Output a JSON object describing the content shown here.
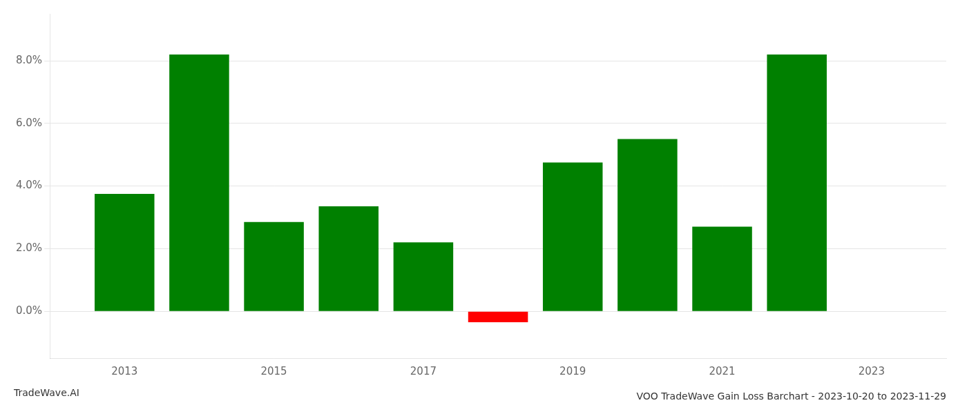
{
  "chart_data": {
    "type": "bar",
    "title": "VOO TradeWave Gain Loss Barchart - 2023-10-20 to 2023-11-29",
    "annotations": [
      "TradeWave.AI"
    ],
    "x": [
      2013,
      2014,
      2015,
      2016,
      2017,
      2018,
      2019,
      2020,
      2021,
      2022
    ],
    "values": [
      0.0375,
      0.082,
      0.0285,
      0.0335,
      0.022,
      -0.0035,
      0.0475,
      0.055,
      0.027,
      0.082
    ],
    "colors": [
      "#008000",
      "#008000",
      "#008000",
      "#008000",
      "#008000",
      "#ff0000",
      "#008000",
      "#008000",
      "#008000",
      "#008000"
    ],
    "xlim": [
      2012.0,
      2024.0
    ],
    "xticks": [
      2013,
      2015,
      2017,
      2019,
      2021,
      2023
    ],
    "ylim": [
      -0.015,
      0.095
    ],
    "yticks": [
      {
        "value": 0.0,
        "label": "0.0%"
      },
      {
        "value": 0.02,
        "label": "2.0%"
      },
      {
        "value": 0.04,
        "label": "4.0%"
      },
      {
        "value": 0.06,
        "label": "6.0%"
      },
      {
        "value": 0.08,
        "label": "8.0%"
      }
    ],
    "grid": true
  }
}
